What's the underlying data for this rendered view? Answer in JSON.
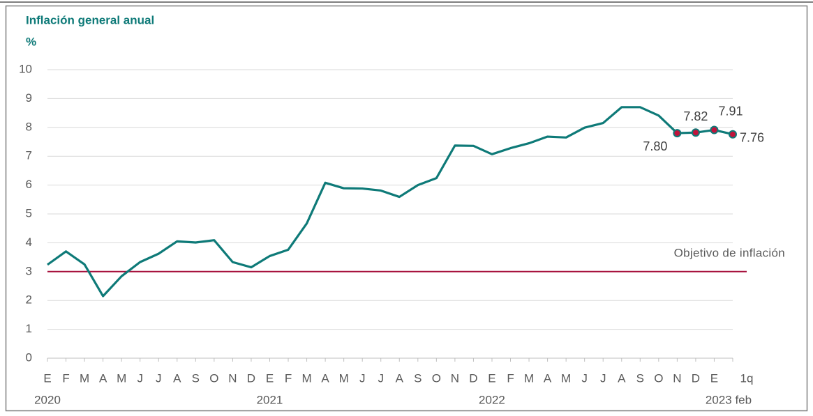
{
  "chart_data": {
    "type": "line",
    "title": "Inflación general anual",
    "subtitle": "%",
    "categories": [
      "E",
      "F",
      "M",
      "A",
      "M",
      "J",
      "J",
      "A",
      "S",
      "O",
      "N",
      "D",
      "E",
      "F",
      "M",
      "A",
      "M",
      "J",
      "J",
      "A",
      "S",
      "O",
      "N",
      "D",
      "E",
      "F",
      "M",
      "A",
      "M",
      "J",
      "J",
      "A",
      "S",
      "O",
      "N",
      "D",
      "E",
      "1q"
    ],
    "year_labels": [
      "2020",
      null,
      null,
      null,
      null,
      null,
      null,
      null,
      null,
      null,
      null,
      null,
      "2021",
      null,
      null,
      null,
      null,
      null,
      null,
      null,
      null,
      null,
      null,
      null,
      "2022",
      null,
      null,
      null,
      null,
      null,
      null,
      null,
      null,
      null,
      null,
      null,
      null,
      "2023 feb"
    ],
    "series": [
      {
        "name": "Inflación general anual",
        "color": "#0e7a78",
        "values": [
          3.24,
          3.7,
          3.25,
          2.15,
          2.84,
          3.33,
          3.62,
          4.05,
          4.01,
          4.09,
          3.33,
          3.15,
          3.54,
          3.76,
          4.67,
          6.08,
          5.89,
          5.88,
          5.81,
          5.59,
          6.0,
          6.24,
          7.37,
          7.36,
          7.07,
          7.28,
          7.45,
          7.68,
          7.65,
          7.99,
          8.15,
          8.7,
          8.7,
          8.41,
          7.8,
          7.82,
          7.91,
          7.76
        ],
        "value_labels": [
          null,
          null,
          null,
          null,
          null,
          null,
          null,
          null,
          null,
          null,
          null,
          null,
          null,
          null,
          null,
          null,
          null,
          null,
          null,
          null,
          null,
          null,
          null,
          null,
          null,
          null,
          null,
          null,
          null,
          null,
          null,
          null,
          null,
          null,
          "7.80",
          "7.82",
          "7.91",
          "7.76"
        ],
        "marker_color": "#c0143c"
      }
    ],
    "target": {
      "value": 3,
      "label": "Objetivo de inflación",
      "color": "#a50d3a"
    },
    "ylim": [
      0,
      10
    ],
    "yticks": [
      0,
      1,
      2,
      3,
      4,
      5,
      6,
      7,
      8,
      9,
      10
    ],
    "grid": true
  }
}
